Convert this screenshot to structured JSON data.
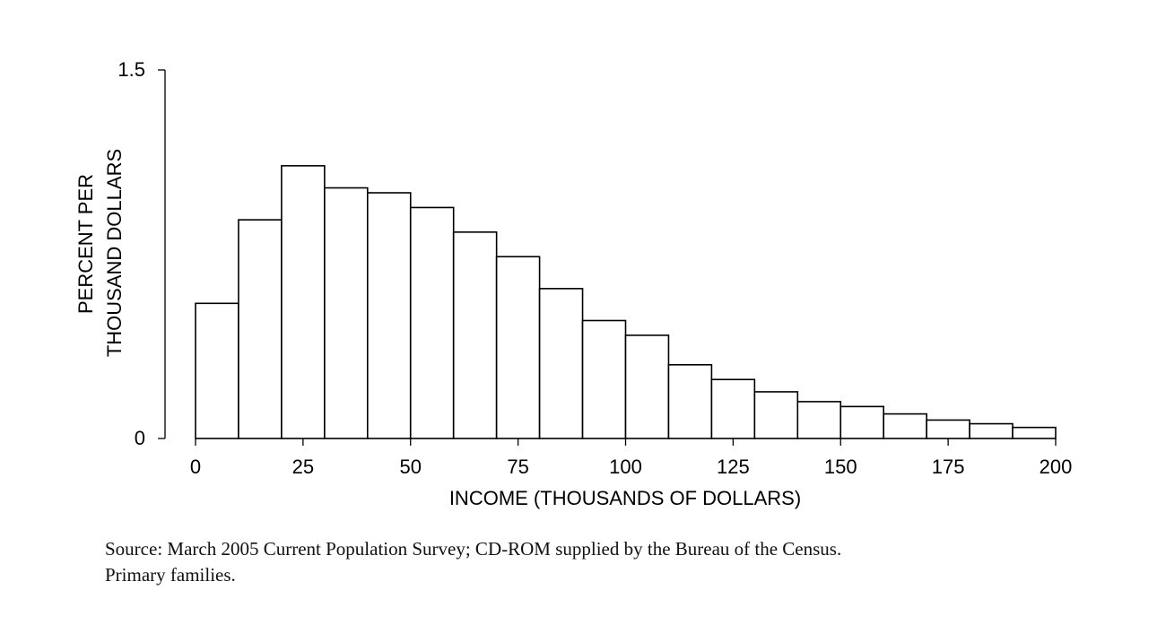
{
  "chart_data": {
    "type": "bar",
    "bin_edges": [
      0,
      10,
      20,
      30,
      40,
      50,
      60,
      70,
      80,
      90,
      100,
      110,
      120,
      130,
      140,
      150,
      160,
      170,
      180,
      190,
      200
    ],
    "values": [
      0.55,
      0.89,
      1.11,
      1.02,
      1.0,
      0.94,
      0.84,
      0.74,
      0.61,
      0.48,
      0.42,
      0.3,
      0.24,
      0.19,
      0.15,
      0.13,
      0.1,
      0.075,
      0.06,
      0.045
    ],
    "xlabel": "INCOME (THOUSANDS OF DOLLARS)",
    "ylabel_lines": [
      "PERCENT PER",
      "THOUSAND DOLLARS"
    ],
    "x_ticks": [
      0,
      25,
      50,
      75,
      100,
      125,
      150,
      175,
      200
    ],
    "y_ticks": [
      0,
      1.5
    ],
    "xlim": [
      0,
      200
    ],
    "ylim": [
      0,
      1.5
    ],
    "grid": false,
    "bar_fill": "#ffffff",
    "bar_stroke": "#000000"
  },
  "caption": {
    "line1": "Source: March 2005 Current Population Survey; CD-ROM supplied by the Bureau of the Census.",
    "line2": "Primary families."
  }
}
